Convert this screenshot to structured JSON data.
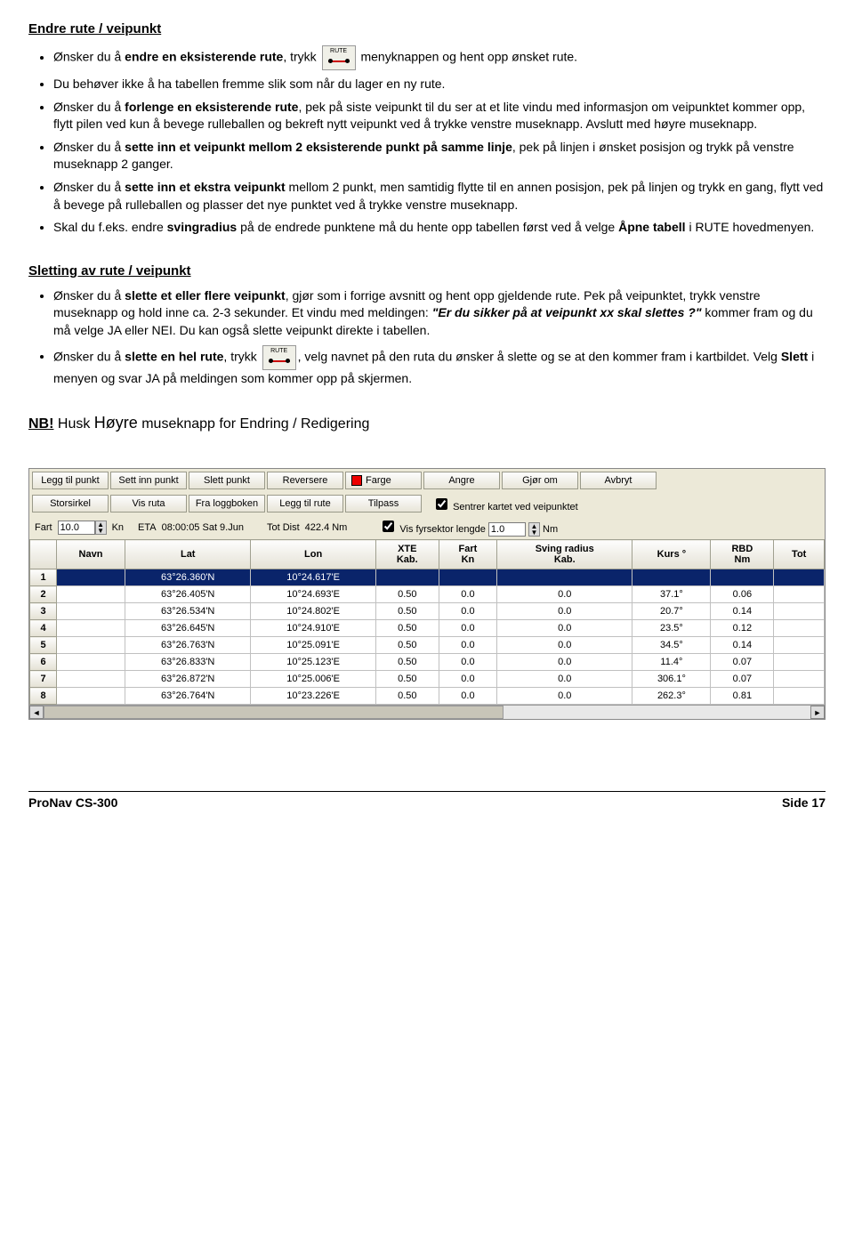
{
  "heading1": "Endre rute / veipunkt",
  "bullets1": {
    "b1a": "Ønsker du å ",
    "b1b": "endre en eksisterende rute",
    "b1c": ", trykk ",
    "b1d": " menyknappen og hent opp ønsket rute.",
    "b2": "Du behøver ikke å ha tabellen fremme slik som når du lager en ny rute.",
    "b3a": "Ønsker du å ",
    "b3b": "forlenge en eksisterende rute",
    "b3c": ", pek på siste veipunkt til du ser at et lite vindu med informasjon om veipunktet kommer opp, flytt pilen ved kun å bevege rulleballen og bekreft nytt veipunkt ved å trykke venstre museknapp. Avslutt med høyre museknapp.",
    "b4a": "Ønsker du å ",
    "b4b": "sette inn et veipunkt mellom 2 eksisterende punkt på samme linje",
    "b4c": ", pek på linjen i ønsket posisjon og trykk på venstre museknapp 2 ganger.",
    "b5a": "Ønsker du å ",
    "b5b": "sette inn et ekstra veipunkt",
    "b5c": " mellom 2 punkt, men samtidig flytte til en annen posisjon, pek på linjen og trykk en gang, flytt ved å bevege på rulleballen og plasser det nye punktet ved å trykke venstre museknapp.",
    "b6a": "Skal du f.eks. endre ",
    "b6b": "svingradius",
    "b6c": " på de endrede punktene må du hente opp tabellen først ved å velge ",
    "b6d": "Åpne tabell",
    "b6e": " i RUTE hovedmenyen."
  },
  "heading2": "Sletting av rute / veipunkt",
  "bullets2": {
    "b1a": "Ønsker du å ",
    "b1b": "slette et eller flere veipunkt",
    "b1c": ", gjør som i forrige avsnitt og hent opp gjeldende rute. Pek på veipunktet, trykk venstre museknapp og hold inne ca. 2-3 sekunder. Et vindu med meldingen: ",
    "b1d": "\"Er du sikker på at veipunkt xx skal slettes ?\"",
    "b1e": " kommer fram og du må velge JA eller NEI. Du kan også slette veipunkt direkte i tabellen.",
    "b2a": "Ønsker du å ",
    "b2b": "slette en hel rute",
    "b2c": ", trykk ",
    "b2d": ", velg navnet på den ruta du ønsker å slette og se at den kommer fram i kartbildet. Velg ",
    "b2e": "Slett",
    "b2f": " i menyen og svar JA på meldingen som kommer opp på skjermen."
  },
  "nb": {
    "nb": "NB!",
    "rest1": "  Husk ",
    "hoyre": "Høyre",
    "rest2": " museknapp for ",
    "endr": "Endring / Redigering"
  },
  "toolbar": {
    "row1": [
      "Legg til punkt",
      "Sett inn punkt",
      "Slett punkt",
      "Reversere",
      "Farge",
      "Angre",
      "Gjør om",
      "Avbryt"
    ],
    "row2": [
      "Storsirkel",
      "Vis ruta",
      "Fra loggboken",
      "Legg til rute",
      "Tilpass"
    ],
    "chk1": "Sentrer kartet ved veipunktet",
    "chk2": "Vis fyrsektor lengde",
    "fart": "Fart",
    "fartval": "10.0",
    "kn": "Kn",
    "eta": "ETA",
    "etaval": "08:00:05 Sat 9.Jun",
    "totdist": "Tot Dist",
    "totdistval": "422.4 Nm",
    "fyrsval": "1.0",
    "nm": "Nm"
  },
  "table": {
    "headers": [
      "",
      "Navn",
      "Lat",
      "Lon",
      "XTE Kab.",
      "Fart Kn",
      "Sving radius Kab.",
      "Kurs °",
      "RBD Nm",
      "Tot"
    ],
    "rows": [
      {
        "n": "1",
        "navn": "",
        "lat": "63°26.360'N",
        "lon": "10°24.617'E",
        "xte": "",
        "fart": "",
        "sving": "",
        "kurs": "",
        "rbd": "",
        "tot": "",
        "sel": true
      },
      {
        "n": "2",
        "navn": "",
        "lat": "63°26.405'N",
        "lon": "10°24.693'E",
        "xte": "0.50",
        "fart": "0.0",
        "sving": "0.0",
        "kurs": "37.1°",
        "rbd": "0.06",
        "tot": ""
      },
      {
        "n": "3",
        "navn": "",
        "lat": "63°26.534'N",
        "lon": "10°24.802'E",
        "xte": "0.50",
        "fart": "0.0",
        "sving": "0.0",
        "kurs": "20.7°",
        "rbd": "0.14",
        "tot": ""
      },
      {
        "n": "4",
        "navn": "",
        "lat": "63°26.645'N",
        "lon": "10°24.910'E",
        "xte": "0.50",
        "fart": "0.0",
        "sving": "0.0",
        "kurs": "23.5°",
        "rbd": "0.12",
        "tot": ""
      },
      {
        "n": "5",
        "navn": "",
        "lat": "63°26.763'N",
        "lon": "10°25.091'E",
        "xte": "0.50",
        "fart": "0.0",
        "sving": "0.0",
        "kurs": "34.5°",
        "rbd": "0.14",
        "tot": ""
      },
      {
        "n": "6",
        "navn": "",
        "lat": "63°26.833'N",
        "lon": "10°25.123'E",
        "xte": "0.50",
        "fart": "0.0",
        "sving": "0.0",
        "kurs": "11.4°",
        "rbd": "0.07",
        "tot": ""
      },
      {
        "n": "7",
        "navn": "",
        "lat": "63°26.872'N",
        "lon": "10°25.006'E",
        "xte": "0.50",
        "fart": "0.0",
        "sving": "0.0",
        "kurs": "306.1°",
        "rbd": "0.07",
        "tot": ""
      },
      {
        "n": "8",
        "navn": "",
        "lat": "63°26.764'N",
        "lon": "10°23.226'E",
        "xte": "0.50",
        "fart": "0.0",
        "sving": "0.0",
        "kurs": "262.3°",
        "rbd": "0.81",
        "tot": ""
      }
    ]
  },
  "footer": {
    "left": "ProNav CS-300",
    "right": "Side 17"
  },
  "rute_label": "RUTE"
}
